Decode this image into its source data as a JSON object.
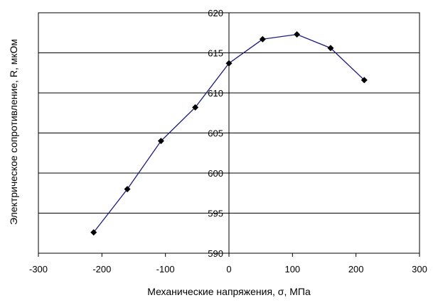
{
  "chart_data": {
    "type": "line",
    "xlabel": "Механические напряжения, σ, МПа",
    "ylabel": "Электрическое сопротивление, R, мкОм",
    "xlim": [
      -300,
      300
    ],
    "ylim": [
      590,
      620
    ],
    "x_ticks": [
      -300,
      -200,
      -100,
      0,
      100,
      200,
      300
    ],
    "y_ticks": [
      590,
      595,
      600,
      605,
      610,
      615,
      620
    ],
    "x_tick_labels": [
      "-300",
      "-200",
      "-100",
      "0",
      "100",
      "200",
      "300"
    ],
    "y_tick_labels": [
      "590",
      "595",
      "600",
      "605",
      "610",
      "615",
      "620"
    ],
    "grid": "horizontal",
    "series": [
      {
        "x": [
          -213,
          -160,
          -107,
          -53,
          0,
          53,
          107,
          160,
          213
        ],
        "y": [
          592.6,
          598.0,
          604.0,
          608.2,
          613.7,
          616.7,
          617.3,
          615.6,
          611.6
        ]
      }
    ],
    "colors": {
      "line": "#1a1a80",
      "marker": "#000000",
      "grid": "#000000",
      "axis": "#000000"
    }
  }
}
